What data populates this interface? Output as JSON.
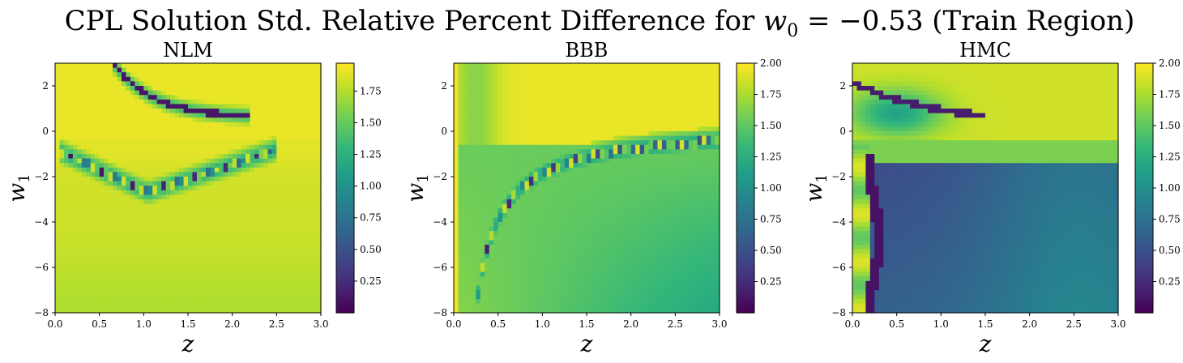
{
  "figure": {
    "title_prefix": "CPL Solution Std. Relative Percent Difference for ",
    "title_math_var": "w",
    "title_math_sub": "0",
    "title_math_rest": " = −0.53",
    "title_suffix": " (Train Region)"
  },
  "chart_data": [
    {
      "type": "heatmap",
      "title": "NLM",
      "xlabel": "z",
      "ylabel": "w1",
      "xlim": [
        0.0,
        3.0
      ],
      "ylim": [
        -8,
        3
      ],
      "xticks": [
        "0.0",
        "0.5",
        "1.0",
        "1.5",
        "2.0",
        "2.5",
        "3.0"
      ],
      "yticks": [
        "2",
        "0",
        "−2",
        "−4",
        "−6",
        "−8"
      ],
      "colorbar": {
        "min": 0.0,
        "max": 1.97,
        "ticks": [
          "1.75",
          "1.50",
          "1.25",
          "1.00",
          "0.75",
          "0.50",
          "0.25"
        ],
        "colormap": "viridis"
      },
      "description_values": {
        "background": 1.85,
        "low_curve": 0.05
      }
    },
    {
      "type": "heatmap",
      "title": "BBB",
      "xlabel": "z",
      "ylabel": "w1",
      "xlim": [
        0.0,
        3.0
      ],
      "ylim": [
        -8,
        3
      ],
      "xticks": [
        "0.0",
        "0.5",
        "1.0",
        "1.5",
        "2.0",
        "2.5",
        "3.0"
      ],
      "yticks": [
        "2",
        "0",
        "−2",
        "−4",
        "−6",
        "−8"
      ],
      "colorbar": {
        "min": 0.0,
        "max": 2.0,
        "ticks": [
          "2.00",
          "1.75",
          "1.50",
          "1.25",
          "1.00",
          "0.75",
          "0.50",
          "0.25"
        ],
        "colormap": "viridis"
      },
      "description_values": {
        "upper_region": 1.95,
        "lower_region": 1.2,
        "low_curve": 0.05
      }
    },
    {
      "type": "heatmap",
      "title": "HMC",
      "xlabel": "z",
      "ylabel": "w1",
      "xlim": [
        0.0,
        3.0
      ],
      "ylim": [
        -8,
        3
      ],
      "xticks": [
        "0.0",
        "0.5",
        "1.0",
        "1.5",
        "2.0",
        "2.5",
        "3.0"
      ],
      "yticks": [
        "2",
        "0",
        "−2",
        "−4",
        "−6",
        "−8"
      ],
      "colorbar": {
        "min": 0.0,
        "max": 2.0,
        "ticks": [
          "2.00",
          "1.75",
          "1.50",
          "1.25",
          "1.00",
          "0.75",
          "0.50",
          "0.25"
        ],
        "colormap": "viridis"
      },
      "description_values": {
        "upper_region": 1.9,
        "lower_region": 0.55,
        "low_curve": 0.05
      }
    }
  ]
}
